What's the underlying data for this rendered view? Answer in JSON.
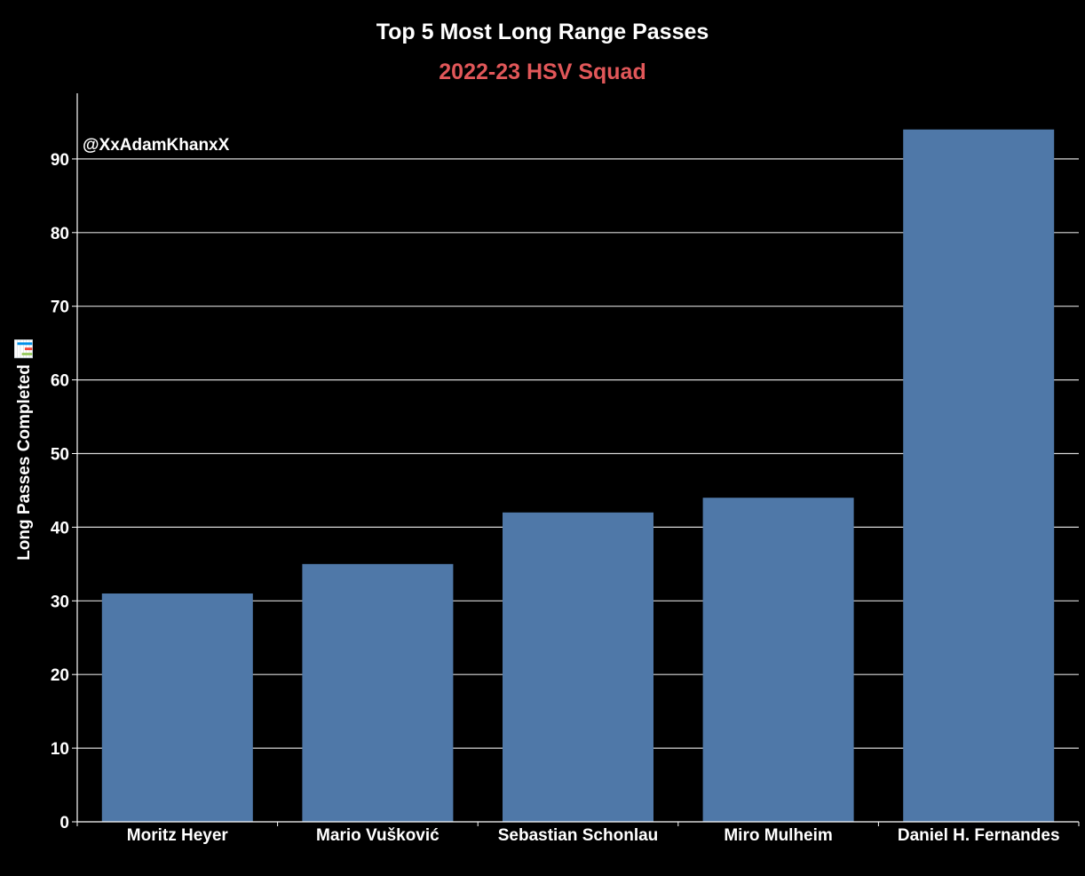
{
  "chart_data": {
    "type": "bar",
    "title": "Top 5 Most Long Range Passes",
    "subtitle": "2022-23 HSV Squad",
    "xlabel": "",
    "ylabel": "Long Passes Completed 📊",
    "annotation": "@XxAdamKhanxX",
    "categories": [
      "Moritz Heyer",
      "Mario Vušković",
      "Sebastian Schonlau",
      "Miro Mulheim",
      "Daniel H. Fernandes"
    ],
    "values": [
      31,
      35,
      42,
      44,
      94
    ],
    "ylim": [
      0,
      100
    ],
    "yticks": [
      0,
      10,
      20,
      30,
      40,
      50,
      60,
      70,
      80,
      90
    ],
    "grid": true,
    "legend": "none"
  },
  "colors": {
    "background": "#000000",
    "bar": "#4f78a8",
    "grid": "#d9d9d9",
    "axis": "#ffffff",
    "title": "#ffffff",
    "subtitle": "#e15759",
    "text": "#ffffff"
  }
}
